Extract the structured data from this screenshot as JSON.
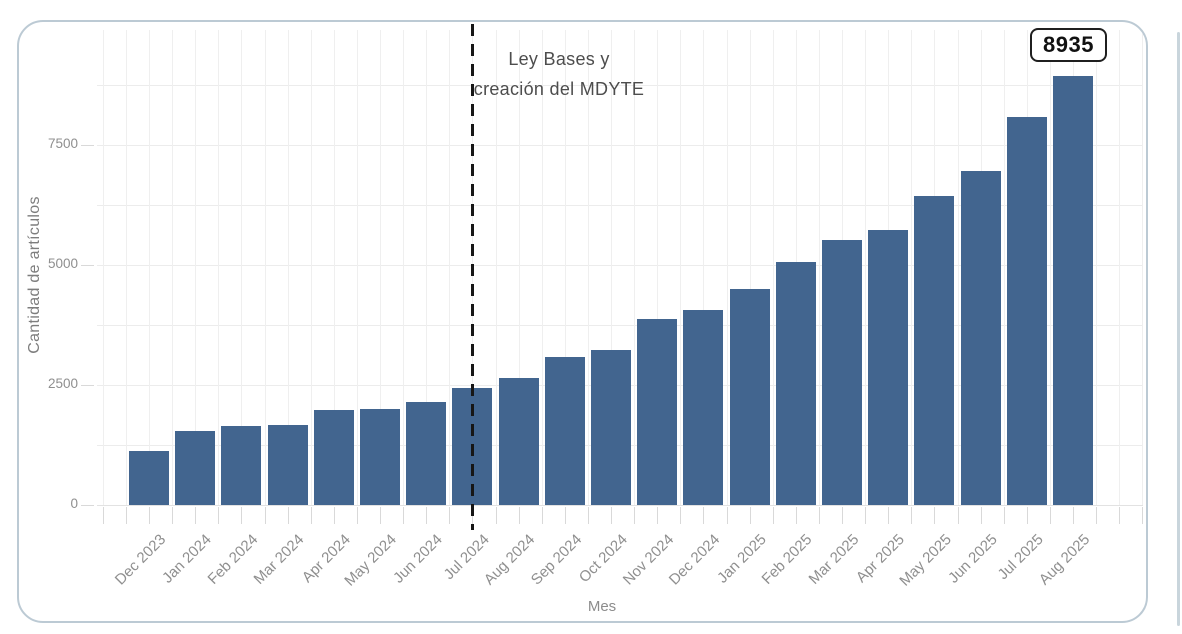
{
  "badge": {
    "value": "8935"
  },
  "annotation": {
    "line1": "Ley Bases y",
    "line2": "creación del MDYTE"
  },
  "chart_data": {
    "type": "bar",
    "title": "",
    "xlabel": "Mes",
    "ylabel": "Cantidad de artículos",
    "categories": [
      "Dec 2023",
      "Jan 2024",
      "Feb 2024",
      "Mar 2024",
      "Apr 2024",
      "May 2024",
      "Jun 2024",
      "Jul 2024",
      "Aug 2024",
      "Sep 2024",
      "Oct 2024",
      "Nov 2024",
      "Dec 2024",
      "Jan 2025",
      "Feb 2025",
      "Mar 2025",
      "Apr 2025",
      "May 2025",
      "Jun 2025",
      "Jul 2025",
      "Aug 2025"
    ],
    "values": [
      1130,
      1540,
      1650,
      1660,
      1980,
      2010,
      2150,
      2430,
      2650,
      3080,
      3240,
      3870,
      4060,
      4500,
      5070,
      5520,
      5730,
      6440,
      6950,
      8090,
      8935
    ],
    "yticks": [
      0,
      2500,
      5000,
      7500
    ],
    "ylim": [
      0,
      9200
    ],
    "grid": true,
    "gridline_interval": 1250,
    "legend_position": "none",
    "event_line": {
      "at_category": "Jul 2024",
      "style": "dashed",
      "label": "Ley Bases y creación del MDYTE"
    },
    "last_value_label": "8935"
  },
  "colors": {
    "bar": "#42658F",
    "card_border": "#bccad4",
    "grid": "#ececec",
    "tick_text": "#8f8f8f",
    "axis_title_text": "#7d7d7d",
    "annotation_text": "#4d4d4d",
    "dashed_line": "#161616"
  }
}
